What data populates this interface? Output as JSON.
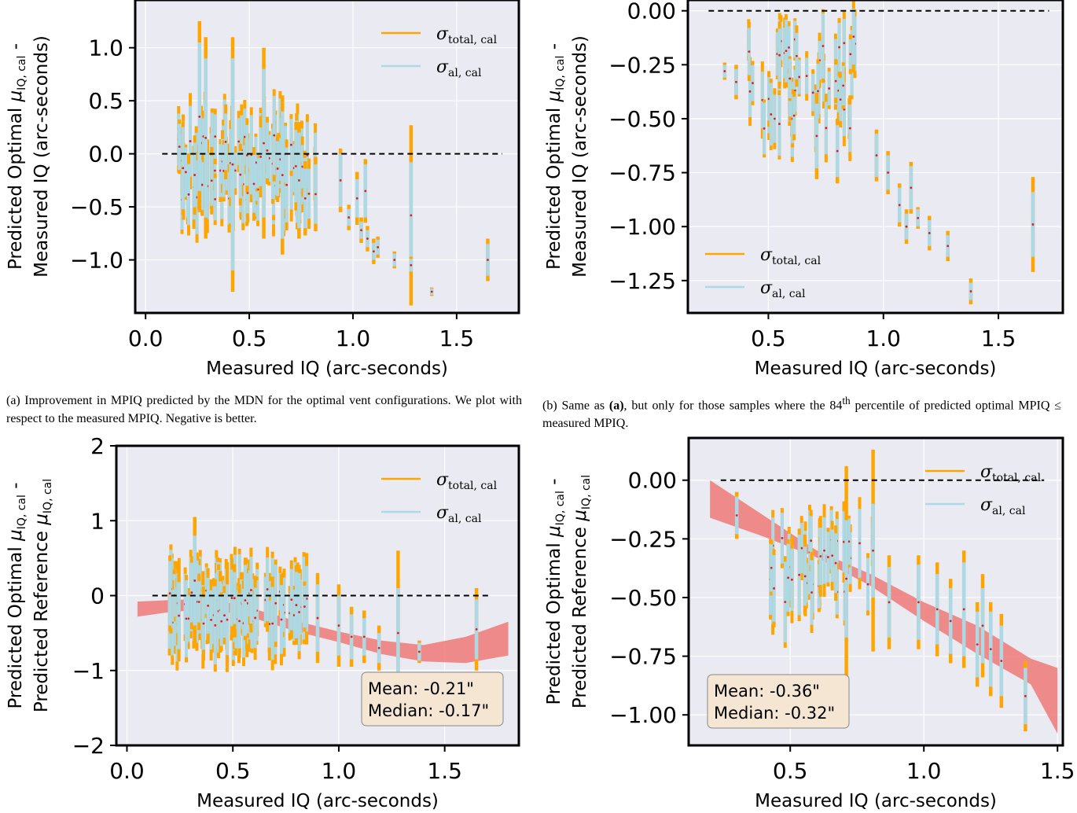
{
  "captions": {
    "a": "(a) Improvement in MPIQ predicted by the MDN for the optimal vent configurations. We plot with respect to the measured MPIQ. Negative is better.",
    "b_pre": "(b) Same as ",
    "b_bold": "(a)",
    "b_mid": ", but only for those samples where the 84",
    "b_sup": "th",
    "b_post": " percentile of predicted optimal MPIQ ≤ measured MPIQ."
  },
  "colors": {
    "total": "#ffa500",
    "aleatoric": "#add8e6",
    "points": "#e41a1c",
    "fit_band": "#f08080",
    "axes_bg": "#eaeaf2",
    "stat_box": "#f5e6d3"
  },
  "chart_data": [
    {
      "id": "a",
      "type": "scatter",
      "xlabel": "Measured IQ (arc-seconds)",
      "ylabel": [
        "Predicted Optimal μ_IQ,cal -",
        "Measured IQ (arc-seconds)"
      ],
      "xlim": [
        -0.05,
        1.8
      ],
      "ylim": [
        -1.5,
        1.45
      ],
      "xticks": [
        0.0,
        0.5,
        1.0,
        1.5
      ],
      "xtick_labels": [
        "0.0",
        "0.5",
        "1.0",
        "1.5"
      ],
      "yticks": [
        1.0,
        0.5,
        0.0,
        -0.5,
        -1.0
      ],
      "ytick_labels": [
        "1.0",
        "0.5",
        "0.0",
        "−0.5",
        "−1.0"
      ],
      "grid": true,
      "legend": {
        "position": "top-right",
        "entries": [
          {
            "sym": "σ",
            "sub": "total, cal",
            "color": "total"
          },
          {
            "sym": "σ",
            "sub": "al, cal",
            "color": "aleatoric"
          }
        ]
      },
      "reference_line": {
        "y": 0,
        "x": [
          0.08,
          1.72
        ]
      },
      "cloud": {
        "x_range": [
          0.15,
          0.82
        ],
        "y_center": -0.12,
        "y_spread": 0.32,
        "total_half": 0.38,
        "aleatoric_half": 0.28,
        "count": 110
      },
      "errorbars": [
        {
          "x": 0.26,
          "y": 0.35,
          "t": 0.9,
          "a": 0.7
        },
        {
          "x": 0.29,
          "y": 0.15,
          "t": 0.95,
          "a": 0.75
        },
        {
          "x": 0.42,
          "y": -0.1,
          "t": 1.2,
          "a": 1.0
        },
        {
          "x": 0.57,
          "y": 0.1,
          "t": 0.9,
          "a": 0.7
        },
        {
          "x": 0.66,
          "y": -0.2,
          "t": 0.75,
          "a": 0.6
        },
        {
          "x": 0.74,
          "y": -0.25,
          "t": 0.55,
          "a": 0.45
        },
        {
          "x": 0.77,
          "y": -0.42,
          "t": 0.35,
          "a": 0.28
        },
        {
          "x": 0.82,
          "y": -0.38,
          "t": 0.35,
          "a": 0.28
        },
        {
          "x": 0.94,
          "y": -0.25,
          "t": 0.3,
          "a": 0.25
        },
        {
          "x": 0.98,
          "y": -0.6,
          "t": 0.12,
          "a": 0.08
        },
        {
          "x": 1.02,
          "y": -0.42,
          "t": 0.25,
          "a": 0.18
        },
        {
          "x": 1.04,
          "y": -0.72,
          "t": 0.12,
          "a": 0.08
        },
        {
          "x": 1.06,
          "y": -0.35,
          "t": 0.3,
          "a": 0.25
        },
        {
          "x": 1.07,
          "y": -0.8,
          "t": 0.12,
          "a": 0.08
        },
        {
          "x": 1.1,
          "y": -0.92,
          "t": 0.12,
          "a": 0.08
        },
        {
          "x": 1.12,
          "y": -0.88,
          "t": 0.1,
          "a": 0.07
        },
        {
          "x": 1.2,
          "y": -1.0,
          "t": 0.08,
          "a": 0.06
        },
        {
          "x": 1.28,
          "y": -0.58,
          "t": 0.85,
          "a": 0.5
        },
        {
          "x": 1.28,
          "y": -1.05,
          "t": 0.08,
          "a": 0.06
        },
        {
          "x": 1.38,
          "y": -1.3,
          "t": 0.04,
          "a": 0.03
        },
        {
          "x": 1.65,
          "y": -1.0,
          "t": 0.2,
          "a": 0.15
        }
      ],
      "fit": null,
      "stats": null
    },
    {
      "id": "b",
      "type": "scatter",
      "xlabel": "Measured IQ (arc-seconds)",
      "ylabel": [
        "Predicted Optimal μ_IQ,cal -",
        "Measured IQ (arc-seconds)"
      ],
      "xlim": [
        0.15,
        1.78
      ],
      "ylim": [
        -1.4,
        0.05
      ],
      "xticks": [
        0.5,
        1.0,
        1.5
      ],
      "xtick_labels": [
        "0.5",
        "1.0",
        "1.5"
      ],
      "yticks": [
        0.0,
        -0.25,
        -0.5,
        -0.75,
        -1.0,
        -1.25
      ],
      "ytick_labels": [
        "0.00",
        "−0.25",
        "−0.50",
        "−0.75",
        "−1.00",
        "−1.25"
      ],
      "grid": true,
      "legend": {
        "position": "lower-left",
        "entries": [
          {
            "sym": "σ",
            "sub": "total, cal",
            "color": "total"
          },
          {
            "sym": "σ",
            "sub": "al, cal",
            "color": "aleatoric"
          }
        ]
      },
      "reference_line": {
        "y": 0,
        "x": [
          0.24,
          1.72
        ]
      },
      "cloud": {
        "x_range": [
          0.4,
          0.88
        ],
        "y_center": -0.33,
        "y_spread": 0.22,
        "total_half": 0.15,
        "aleatoric_half": 0.12,
        "count": 55
      },
      "errorbars": [
        {
          "x": 0.31,
          "y": -0.28,
          "t": 0.04,
          "a": 0.03
        },
        {
          "x": 0.36,
          "y": -0.33,
          "t": 0.08,
          "a": 0.06
        },
        {
          "x": 0.71,
          "y": -0.58,
          "t": 0.2,
          "a": 0.15
        },
        {
          "x": 0.8,
          "y": -0.65,
          "t": 0.15,
          "a": 0.12
        },
        {
          "x": 0.97,
          "y": -0.67,
          "t": 0.12,
          "a": 0.1
        },
        {
          "x": 1.02,
          "y": -0.75,
          "t": 0.1,
          "a": 0.08
        },
        {
          "x": 1.07,
          "y": -0.9,
          "t": 0.1,
          "a": 0.08
        },
        {
          "x": 1.1,
          "y": -1.0,
          "t": 0.08,
          "a": 0.06
        },
        {
          "x": 1.12,
          "y": -0.82,
          "t": 0.12,
          "a": 0.1
        },
        {
          "x": 1.15,
          "y": -0.96,
          "t": 0.05,
          "a": 0.04
        },
        {
          "x": 1.2,
          "y": -1.03,
          "t": 0.08,
          "a": 0.06
        },
        {
          "x": 1.28,
          "y": -1.09,
          "t": 0.07,
          "a": 0.05
        },
        {
          "x": 1.38,
          "y": -1.3,
          "t": 0.06,
          "a": 0.04
        },
        {
          "x": 1.65,
          "y": -0.99,
          "t": 0.22,
          "a": 0.15
        }
      ],
      "fit": null,
      "stats": null
    },
    {
      "id": "c",
      "type": "scatter",
      "xlabel": "Measured IQ (arc-seconds)",
      "ylabel": [
        "Predicted Optimal μ_IQ,cal -",
        "Predicted Reference μ_IQ,cal"
      ],
      "xlim": [
        -0.05,
        1.85
      ],
      "ylim": [
        -2.0,
        2.0
      ],
      "xticks": [
        0.0,
        0.5,
        1.0,
        1.5
      ],
      "xtick_labels": [
        "0.0",
        "0.5",
        "1.0",
        "1.5"
      ],
      "yticks": [
        2,
        1,
        0,
        -1,
        -2
      ],
      "ytick_labels": [
        "2",
        "1",
        "0",
        "−1",
        "−2"
      ],
      "grid": true,
      "legend": {
        "position": "top-right",
        "entries": [
          {
            "sym": "σ",
            "sub": "total, cal",
            "color": "total"
          },
          {
            "sym": "σ",
            "sub": "al, cal",
            "color": "aleatoric"
          }
        ]
      },
      "reference_line": {
        "y": 0,
        "x": [
          0.12,
          1.72
        ]
      },
      "cloud": {
        "x_range": [
          0.2,
          0.85
        ],
        "y_center": -0.15,
        "y_spread": 0.25,
        "total_half": 0.55,
        "aleatoric_half": 0.4,
        "count": 110
      },
      "errorbars": [
        {
          "x": 0.32,
          "y": 0.2,
          "t": 0.85,
          "a": 0.6
        },
        {
          "x": 0.9,
          "y": -0.3,
          "t": 0.6,
          "a": 0.45
        },
        {
          "x": 1.0,
          "y": -0.4,
          "t": 0.55,
          "a": 0.4
        },
        {
          "x": 1.06,
          "y": -0.55,
          "t": 0.4,
          "a": 0.3
        },
        {
          "x": 1.12,
          "y": -0.55,
          "t": 0.35,
          "a": 0.25
        },
        {
          "x": 1.19,
          "y": -0.7,
          "t": 0.3,
          "a": 0.2
        },
        {
          "x": 1.28,
          "y": -0.5,
          "t": 1.1,
          "a": 0.6
        },
        {
          "x": 1.38,
          "y": -0.75,
          "t": 0.15,
          "a": 0.12
        },
        {
          "x": 1.65,
          "y": -0.45,
          "t": 0.55,
          "a": 0.4
        }
      ],
      "fit": {
        "x": [
          0.05,
          0.2,
          0.4,
          0.6,
          0.8,
          1.0,
          1.2,
          1.4,
          1.6,
          1.8
        ],
        "lower": [
          -0.28,
          -0.22,
          -0.18,
          -0.3,
          -0.48,
          -0.62,
          -0.78,
          -0.88,
          -0.9,
          -0.8
        ],
        "upper": [
          -0.08,
          -0.06,
          -0.04,
          -0.18,
          -0.34,
          -0.48,
          -0.6,
          -0.66,
          -0.55,
          -0.35
        ]
      },
      "stats": {
        "position": "bottom-right",
        "mean": "Mean: -0.21\"",
        "median": "Median: -0.17\""
      }
    },
    {
      "id": "d",
      "type": "scatter",
      "xlabel": "Measured IQ (arc-seconds)",
      "ylabel": [
        "Predicted Optimal μ_IQ,cal -",
        "Predicted Reference μ_IQ,cal"
      ],
      "xlim": [
        0.12,
        1.52
      ],
      "ylim": [
        -1.13,
        0.18
      ],
      "xticks": [
        0.5,
        1.0,
        1.5
      ],
      "xtick_labels": [
        "0.5",
        "1.0",
        "1.5"
      ],
      "yticks": [
        0.0,
        -0.25,
        -0.5,
        -0.75,
        -1.0
      ],
      "ytick_labels": [
        "0.00",
        "−0.25",
        "−0.50",
        "−0.75",
        "−1.00"
      ],
      "grid": true,
      "legend": {
        "position": "top-right",
        "entries": [
          {
            "sym": "σ",
            "sub": "total, cal",
            "color": "total"
          },
          {
            "sym": "σ",
            "sub": "al, cal",
            "color": "aleatoric"
          }
        ]
      },
      "reference_line": {
        "y": 0,
        "x": [
          0.24,
          1.45
        ]
      },
      "cloud": {
        "x_range": [
          0.42,
          0.85
        ],
        "y_center": -0.38,
        "y_spread": 0.14,
        "total_half": 0.17,
        "aleatoric_half": 0.13,
        "count": 40
      },
      "errorbars": [
        {
          "x": 0.3,
          "y": -0.15,
          "t": 0.1,
          "a": 0.08
        },
        {
          "x": 0.71,
          "y": -0.42,
          "t": 0.48,
          "a": 0.25
        },
        {
          "x": 0.81,
          "y": -0.3,
          "t": 0.43,
          "a": 0.2
        },
        {
          "x": 0.87,
          "y": -0.52,
          "t": 0.2,
          "a": 0.15
        },
        {
          "x": 0.98,
          "y": -0.52,
          "t": 0.2,
          "a": 0.16
        },
        {
          "x": 1.05,
          "y": -0.55,
          "t": 0.2,
          "a": 0.15
        },
        {
          "x": 1.1,
          "y": -0.6,
          "t": 0.18,
          "a": 0.14
        },
        {
          "x": 1.15,
          "y": -0.55,
          "t": 0.25,
          "a": 0.2
        },
        {
          "x": 1.2,
          "y": -0.7,
          "t": 0.18,
          "a": 0.14
        },
        {
          "x": 1.22,
          "y": -0.62,
          "t": 0.22,
          "a": 0.16
        },
        {
          "x": 1.25,
          "y": -0.72,
          "t": 0.2,
          "a": 0.16
        },
        {
          "x": 1.29,
          "y": -0.77,
          "t": 0.2,
          "a": 0.15
        },
        {
          "x": 1.38,
          "y": -0.92,
          "t": 0.15,
          "a": 0.12
        }
      ],
      "fit": {
        "x": [
          0.2,
          0.4,
          0.6,
          0.8,
          1.0,
          1.2,
          1.4,
          1.5
        ],
        "lower": [
          -0.16,
          -0.24,
          -0.33,
          -0.45,
          -0.6,
          -0.74,
          -0.87,
          -1.08
        ],
        "upper": [
          0.0,
          -0.15,
          -0.3,
          -0.4,
          -0.52,
          -0.62,
          -0.76,
          -0.8
        ]
      },
      "stats": {
        "position": "bottom-left",
        "mean": "Mean: -0.36\"",
        "median": "Median: -0.32\""
      }
    }
  ]
}
